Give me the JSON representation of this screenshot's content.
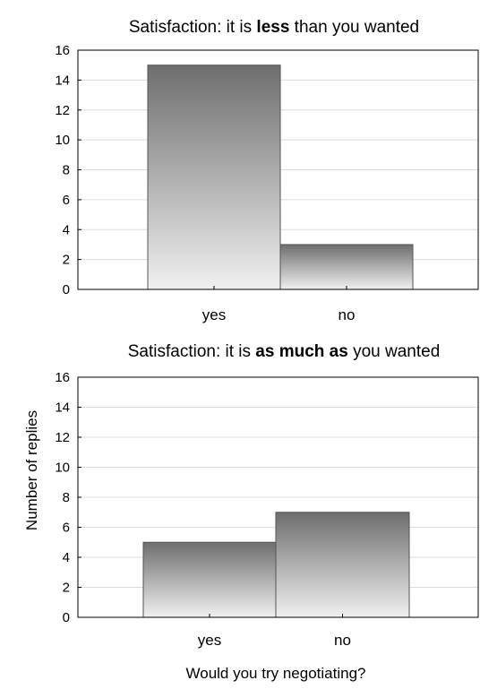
{
  "chart_data": [
    {
      "type": "bar",
      "title": {
        "prefix": "Satisfaction: it is ",
        "emphasis": "less",
        "suffix": " than you wanted"
      },
      "categories": [
        "yes",
        "no"
      ],
      "values": [
        15,
        3
      ],
      "ylim": [
        0,
        16
      ],
      "yticks": [
        "0",
        "2",
        "4",
        "6",
        "8",
        "10",
        "12",
        "14",
        "16"
      ],
      "grid": true
    },
    {
      "type": "bar",
      "title": {
        "prefix": "Satisfaction: it is ",
        "emphasis": "as much as",
        "suffix": " you wanted"
      },
      "categories": [
        "yes",
        "no"
      ],
      "values": [
        5,
        7
      ],
      "ylim": [
        0,
        16
      ],
      "yticks": [
        "0",
        "2",
        "4",
        "6",
        "8",
        "10",
        "12",
        "14",
        "16"
      ],
      "grid": true
    }
  ],
  "ylabel": "Number of replies",
  "xlabel": "Would you try negotiating?"
}
